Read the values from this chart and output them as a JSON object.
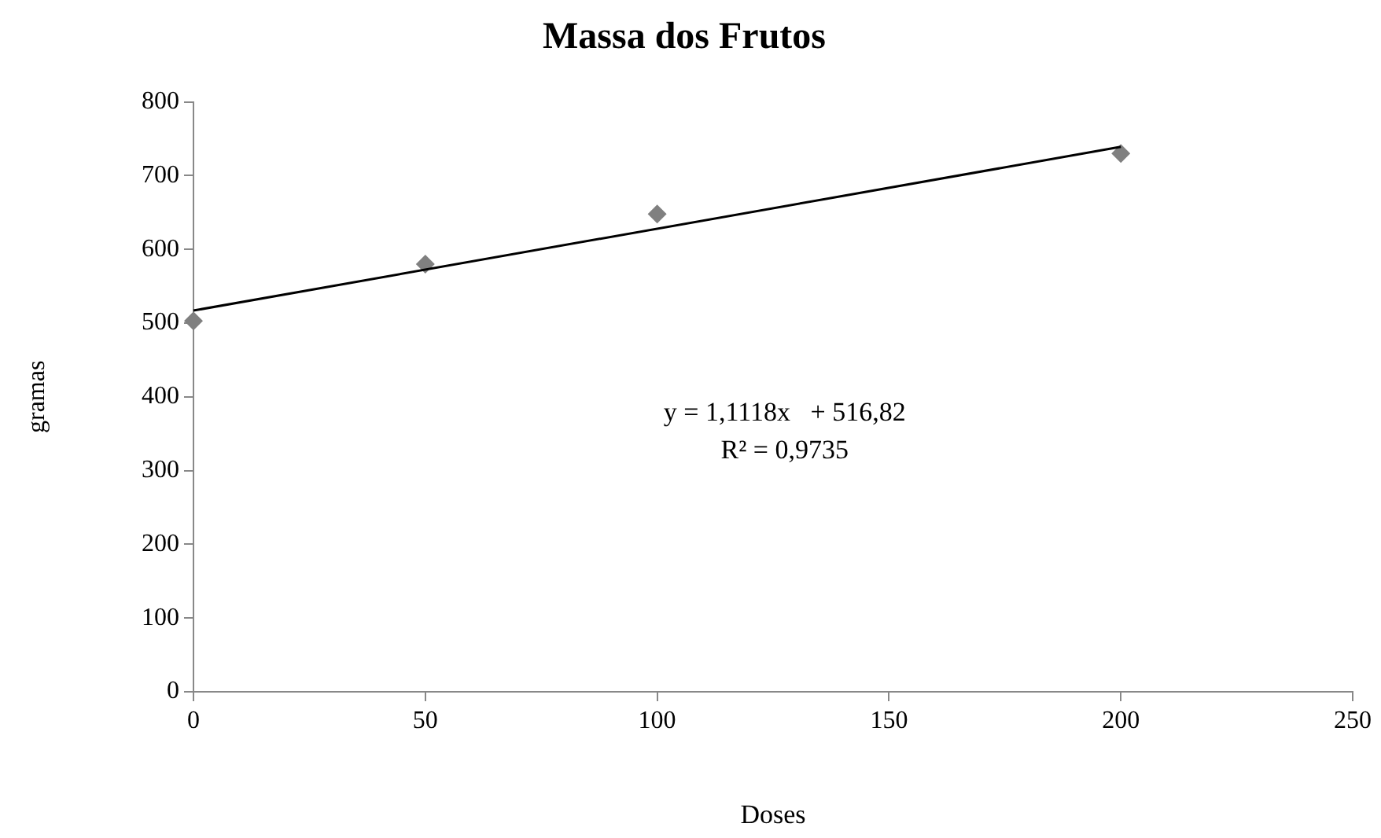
{
  "chart_data": {
    "type": "scatter",
    "title": "Massa dos Frutos",
    "xlabel": "Doses",
    "ylabel": "gramas",
    "x": [
      0,
      50,
      100,
      200
    ],
    "series": [
      {
        "type": "scatter",
        "color": "#808080",
        "marker": "diamond",
        "values": [
          503,
          580,
          648,
          730
        ]
      },
      {
        "type": "line",
        "color": "#000000",
        "marker": "none",
        "line_style": "solid",
        "x": [
          0,
          200
        ],
        "values": [
          517,
          739
        ]
      }
    ],
    "xlim": [
      0,
      250
    ],
    "xticks": [
      0,
      50,
      100,
      150,
      200,
      250
    ],
    "ylim": [
      0,
      800
    ],
    "yticks": [
      0,
      100,
      200,
      300,
      400,
      500,
      600,
      700,
      800
    ],
    "grid": false,
    "legend": false,
    "annotations": [
      "y = 1,1118x   + 516,82",
      "R² = 0,9735"
    ]
  }
}
